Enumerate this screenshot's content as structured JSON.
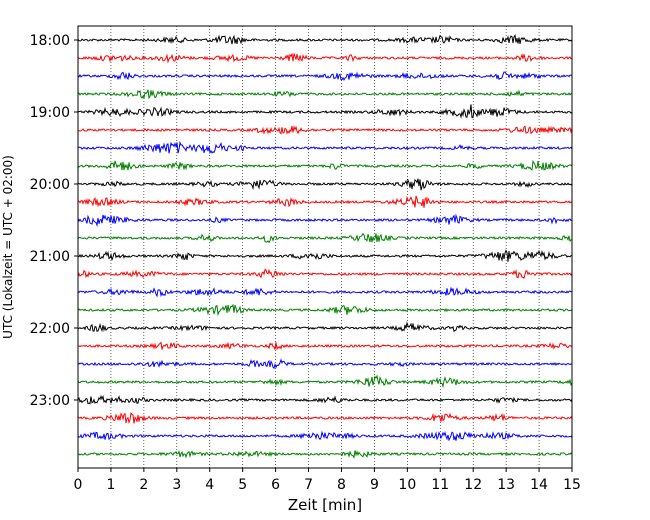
{
  "chart_data": {
    "type": "line",
    "title": "",
    "xlabel": "Zeit  [min]",
    "ylabel": "UTC (Lokalzeit = UTC + 02:00)",
    "xlim": [
      0,
      15
    ],
    "x_ticks": [
      0,
      1,
      2,
      3,
      4,
      5,
      6,
      7,
      8,
      9,
      10,
      11,
      12,
      13,
      14,
      15
    ],
    "x_tick_labels": [
      "0",
      "1",
      "2",
      "3",
      "4",
      "5",
      "6",
      "7",
      "8",
      "9",
      "10",
      "11",
      "12",
      "13",
      "14",
      "15"
    ],
    "y_tick_labels": [
      "18:00",
      "19:00",
      "20:00",
      "21:00",
      "22:00",
      "23:00"
    ],
    "y_tick_traces": [
      0,
      4,
      8,
      12,
      16,
      20
    ],
    "trace_interval_minutes": 15,
    "x_grid": "dotted vertical lines at every minute",
    "legend": "none",
    "trace_colors": [
      "#000000",
      "#ff0000",
      "#0000ff",
      "#008000"
    ],
    "traces": [
      {
        "start": "18:00",
        "color": "#000000"
      },
      {
        "start": "18:15",
        "color": "#ff0000"
      },
      {
        "start": "18:30",
        "color": "#0000ff"
      },
      {
        "start": "18:45",
        "color": "#008000"
      },
      {
        "start": "19:00",
        "color": "#000000"
      },
      {
        "start": "19:15",
        "color": "#ff0000"
      },
      {
        "start": "19:30",
        "color": "#0000ff"
      },
      {
        "start": "19:45",
        "color": "#008000"
      },
      {
        "start": "20:00",
        "color": "#000000"
      },
      {
        "start": "20:15",
        "color": "#ff0000"
      },
      {
        "start": "20:30",
        "color": "#0000ff"
      },
      {
        "start": "20:45",
        "color": "#008000"
      },
      {
        "start": "21:00",
        "color": "#000000"
      },
      {
        "start": "21:15",
        "color": "#ff0000"
      },
      {
        "start": "21:30",
        "color": "#0000ff"
      },
      {
        "start": "21:45",
        "color": "#008000"
      },
      {
        "start": "22:00",
        "color": "#000000"
      },
      {
        "start": "22:15",
        "color": "#ff0000"
      },
      {
        "start": "22:30",
        "color": "#0000ff"
      },
      {
        "start": "22:45",
        "color": "#008000"
      },
      {
        "start": "23:00",
        "color": "#000000"
      },
      {
        "start": "23:15",
        "color": "#ff0000"
      },
      {
        "start": "23:30",
        "color": "#0000ff"
      },
      {
        "start": "23:45",
        "color": "#008000"
      }
    ]
  }
}
